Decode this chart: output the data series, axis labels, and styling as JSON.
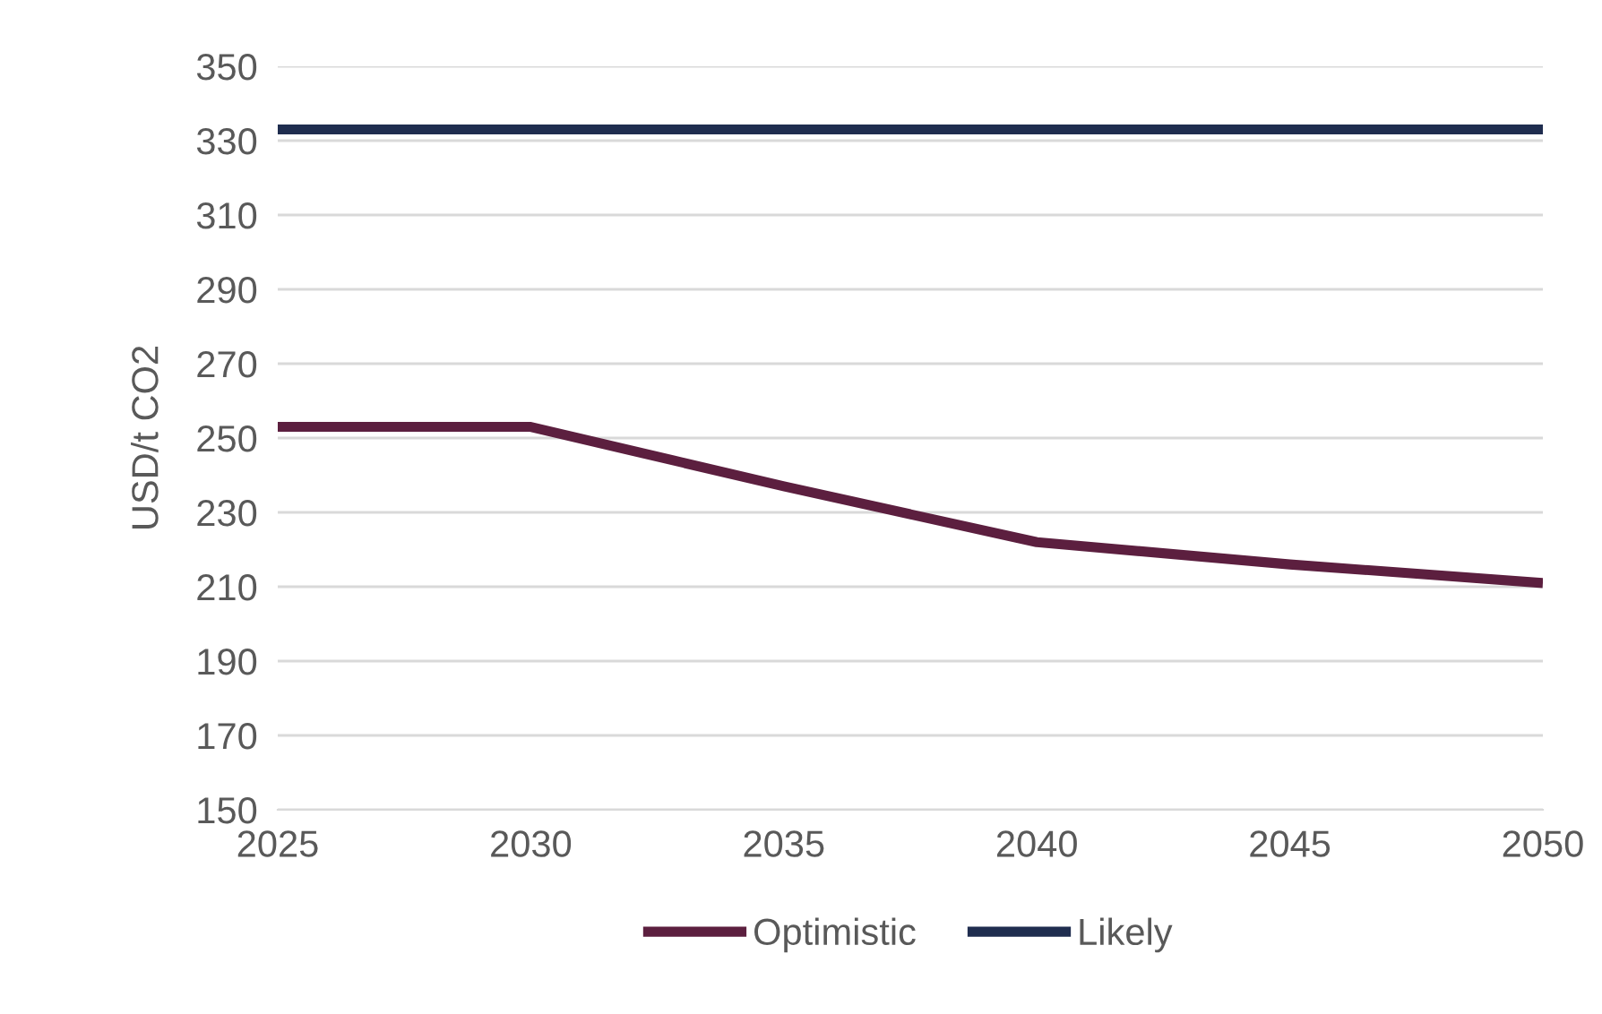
{
  "chart_data": {
    "type": "line",
    "ylabel": "USD/t CO2",
    "categories": [
      "2025",
      "2030",
      "2035",
      "2040",
      "2045",
      "2050"
    ],
    "series": [
      {
        "name": "Optimistic",
        "color": "#5c1f3f",
        "values": [
          253,
          253,
          237,
          222,
          216,
          211
        ]
      },
      {
        "name": "Likely",
        "color": "#1f2d4f",
        "values": [
          333,
          333,
          333,
          333,
          333,
          333
        ]
      }
    ],
    "ylim": [
      150,
      350
    ],
    "yticks": [
      150,
      170,
      190,
      210,
      230,
      250,
      270,
      290,
      310,
      330,
      350
    ],
    "grid": "y",
    "legend": "bottom",
    "marker": "none",
    "line_style": "solid"
  }
}
